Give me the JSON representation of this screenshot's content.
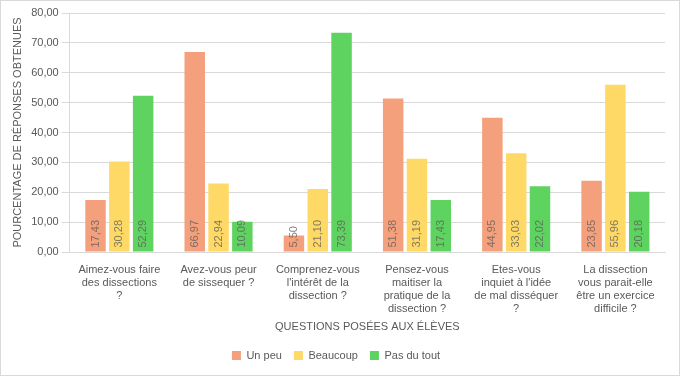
{
  "chart_data": {
    "type": "bar",
    "x_label": "QUESTIONS POSÉES AUX ÉLÈVES",
    "y_label": "POURCENTAGE DE RÉPONSES OBTENUES",
    "categories": [
      "Aimez-vous faire des dissections ?",
      "Avez-vous peur de sissequer ?",
      "Comprenez-vous l'intérêt de la dissection ?",
      "Pensez-vous maitiser la pratique de la dissection ?",
      "Etes-vous inquiet à l'idée de mal disséquer ?",
      "La dissection vous parait-elle être un exercice difficile ?"
    ],
    "series": [
      {
        "name": "Un peu",
        "color": "#f4a07c",
        "values": [
          17.43,
          66.97,
          5.5,
          51.38,
          44.95,
          23.85
        ],
        "value_labels": [
          "17,43",
          "66,97",
          "5,50",
          "51,38",
          "44,95",
          "23,85"
        ]
      },
      {
        "name": "Beaucoup",
        "color": "#ffd966",
        "values": [
          30.28,
          22.94,
          21.1,
          31.19,
          33.03,
          55.96
        ],
        "value_labels": [
          "30,28",
          "22,94",
          "21,10",
          "31,19",
          "33,03",
          "55,96"
        ]
      },
      {
        "name": "Pas du tout",
        "color": "#5fd35f",
        "values": [
          52.29,
          10.09,
          73.39,
          17.43,
          22.02,
          20.18
        ],
        "value_labels": [
          "52,29",
          "10,09",
          "73,39",
          "17,43",
          "22,02",
          "20,18"
        ]
      }
    ],
    "ylim": [
      0,
      80
    ],
    "yticks": [
      {
        "value": 0,
        "label": "0,00"
      },
      {
        "value": 10,
        "label": "10,00"
      },
      {
        "value": 20,
        "label": "20,00"
      },
      {
        "value": 30,
        "label": "30,00"
      },
      {
        "value": 40,
        "label": "40,00"
      },
      {
        "value": 50,
        "label": "50,00"
      },
      {
        "value": 60,
        "label": "60,00"
      },
      {
        "value": 70,
        "label": "70,00"
      },
      {
        "value": 80,
        "label": "80,00"
      }
    ],
    "grid": true,
    "legend": "bottom",
    "data_labels": true
  }
}
